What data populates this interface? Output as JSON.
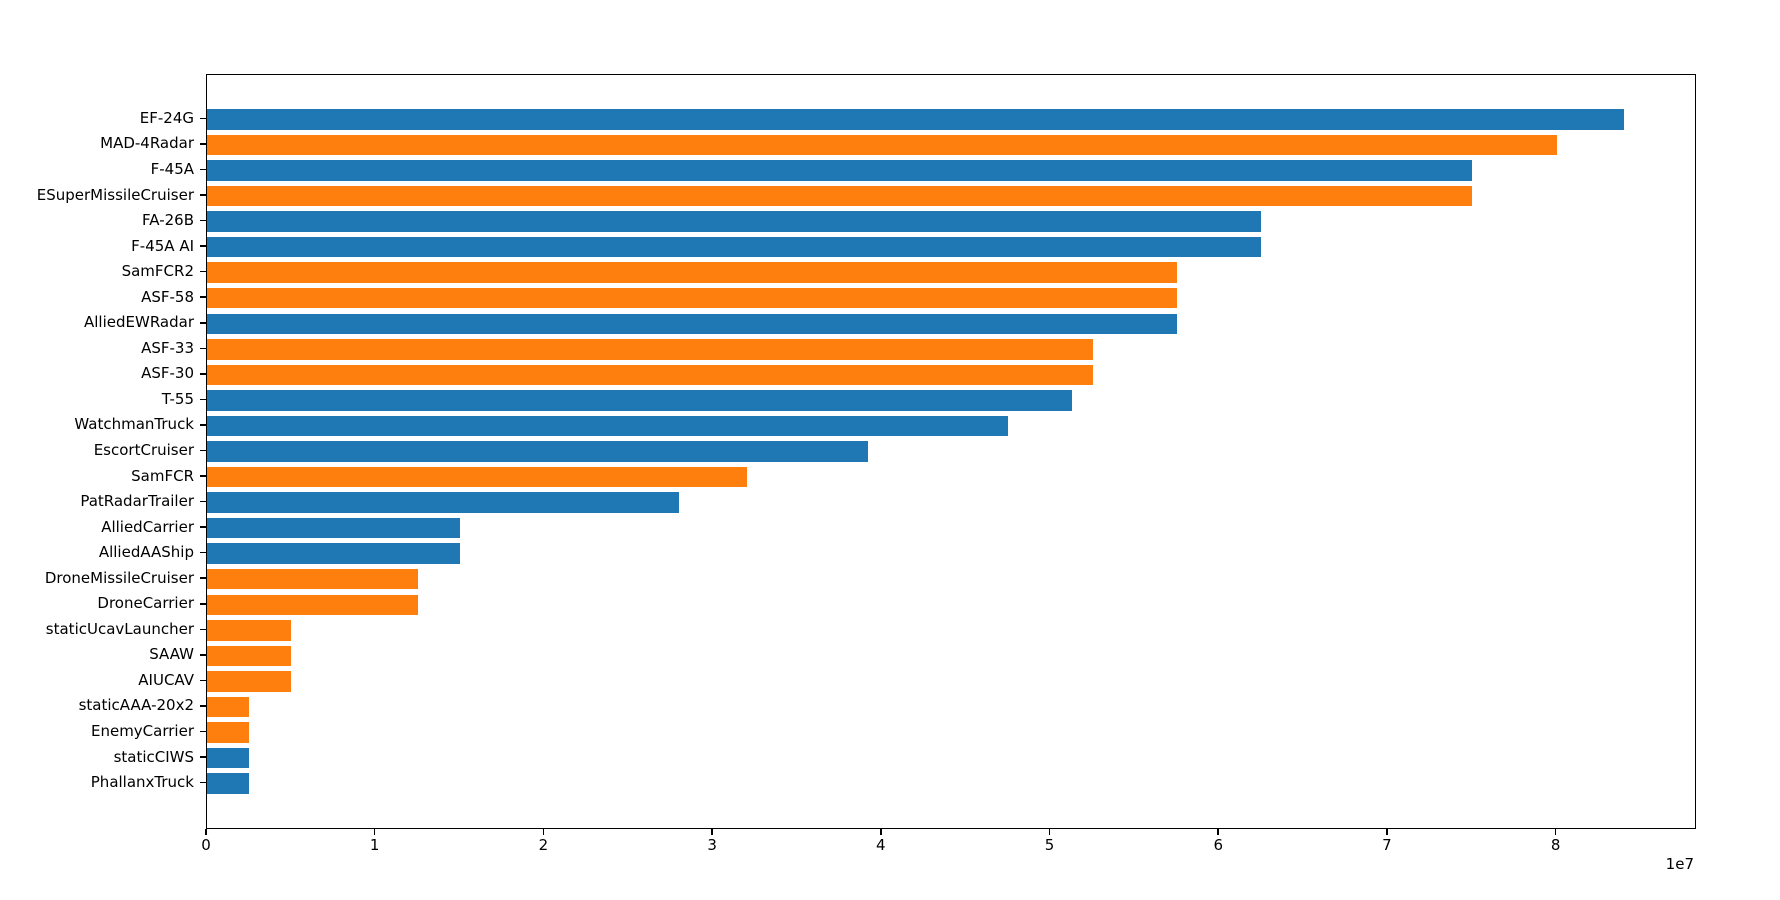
{
  "figure": {
    "background": "#ffffff",
    "plot_border_color": "#000000",
    "text_color": "#000000"
  },
  "chart_data": {
    "type": "bar",
    "orientation": "horizontal",
    "title": "",
    "xlabel": "",
    "ylabel": "",
    "grid": false,
    "legend_position": "none",
    "x_axis": {
      "tick_values": [
        0,
        10000000,
        20000000,
        30000000,
        40000000,
        50000000,
        60000000,
        70000000,
        80000000
      ],
      "tick_labels": [
        "0",
        "1",
        "2",
        "3",
        "4",
        "5",
        "6",
        "7",
        "8"
      ],
      "offset_label": "1e7",
      "xlim": [
        0,
        88200000
      ]
    },
    "palette": {
      "blue": "#1f77b4",
      "orange": "#ff7f0e"
    },
    "categories": [
      "EF-24G",
      "MAD-4Radar",
      "F-45A",
      "ESuperMissileCruiser",
      "FA-26B",
      "F-45A AI",
      "SamFCR2",
      "ASF-58",
      "AlliedEWRadar",
      "ASF-33",
      "ASF-30",
      "T-55",
      "WatchmanTruck",
      "EscortCruiser",
      "SamFCR",
      "PatRadarTrailer",
      "AlliedCarrier",
      "AlliedAAShip",
      "DroneMissileCruiser",
      "DroneCarrier",
      "staticUcavLauncher",
      "SAAW",
      "AIUCAV",
      "staticAAA-20x2",
      "EnemyCarrier",
      "staticCIWS",
      "PhallanxTruck"
    ],
    "values": [
      84000000,
      80000000,
      75000000,
      75000000,
      62500000,
      62500000,
      57500000,
      57500000,
      57500000,
      52500000,
      52500000,
      51250000,
      47500000,
      39200000,
      32000000,
      28000000,
      15000000,
      15000000,
      12500000,
      12500000,
      5000000,
      5000000,
      5000000,
      2500000,
      2500000,
      2500000,
      2500000
    ],
    "bar_colors": [
      "#1f77b4",
      "#ff7f0e",
      "#1f77b4",
      "#ff7f0e",
      "#1f77b4",
      "#1f77b4",
      "#ff7f0e",
      "#ff7f0e",
      "#1f77b4",
      "#ff7f0e",
      "#ff7f0e",
      "#1f77b4",
      "#1f77b4",
      "#1f77b4",
      "#ff7f0e",
      "#1f77b4",
      "#1f77b4",
      "#1f77b4",
      "#ff7f0e",
      "#ff7f0e",
      "#ff7f0e",
      "#ff7f0e",
      "#ff7f0e",
      "#ff7f0e",
      "#ff7f0e",
      "#1f77b4",
      "#1f77b4"
    ]
  }
}
